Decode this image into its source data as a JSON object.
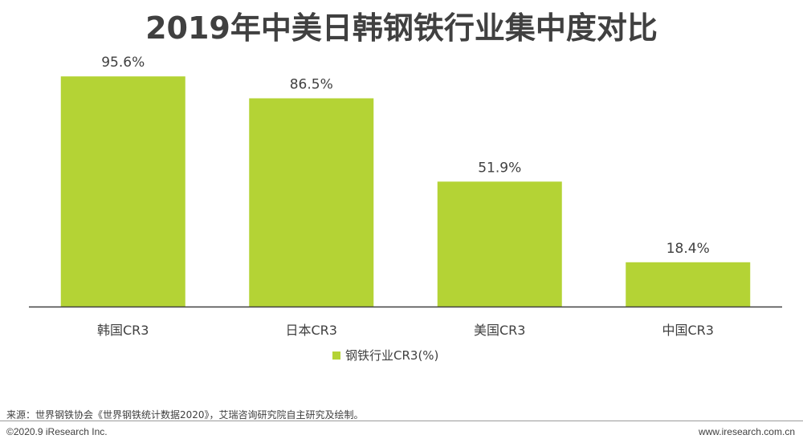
{
  "title": "2019年中美日韩钢铁行业集中度对比",
  "colors": {
    "bar": "#b4d335",
    "axis": "#404040",
    "text": "#404040"
  },
  "chart_data": {
    "type": "bar",
    "categories": [
      "韩国CR3",
      "日本CR3",
      "美国CR3",
      "中国CR3"
    ],
    "series": [
      {
        "name": "钢铁行业CR3(%)",
        "values": [
          95.6,
          86.5,
          51.9,
          18.4
        ]
      }
    ],
    "data_labels": [
      "95.6%",
      "86.5%",
      "51.9%",
      "18.4%"
    ],
    "ylim": [
      0,
      100
    ],
    "grid": false,
    "legend_position": "bottom-center"
  },
  "legend_label": "钢铁行业CR3(%)",
  "source_text": "来源：世界钢铁协会《世界钢铁统计数据2020》，艾瑞咨询研究院自主研究及绘制。",
  "copyright": "©2020.9 iResearch Inc.",
  "site": "www.iresearch.com.cn"
}
